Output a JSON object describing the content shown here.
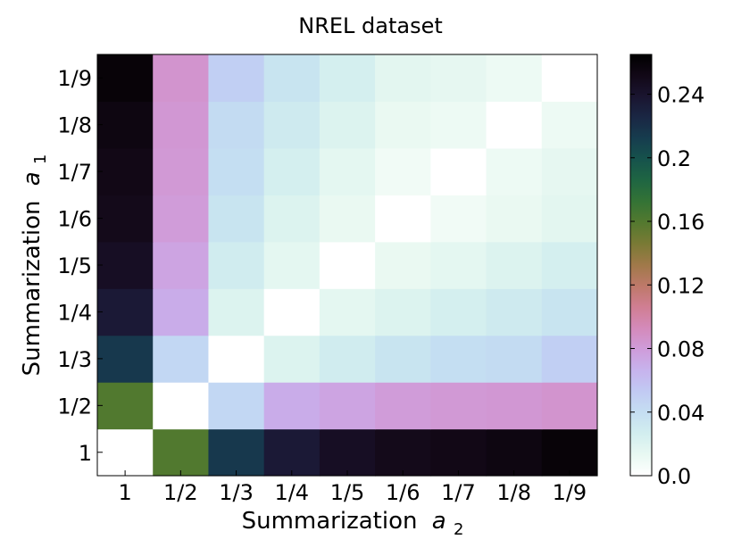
{
  "chart_data": {
    "type": "heatmap",
    "title": "NREL dataset",
    "xlabel": "Summarization",
    "xlabel_var": "a",
    "xlabel_sub": "2",
    "ylabel": "Summarization",
    "ylabel_var": "a",
    "ylabel_sub": "1",
    "x_categories": [
      "1",
      "1/2",
      "1/3",
      "1/4",
      "1/5",
      "1/6",
      "1/7",
      "1/8",
      "1/9"
    ],
    "y_categories": [
      "1",
      "1/2",
      "1/3",
      "1/4",
      "1/5",
      "1/6",
      "1/7",
      "1/8",
      "1/9"
    ],
    "values": [
      [
        0.0,
        0.16,
        0.215,
        0.235,
        0.245,
        0.25,
        0.252,
        0.255,
        0.26
      ],
      [
        0.16,
        0.0,
        0.045,
        0.07,
        0.075,
        0.08,
        0.082,
        0.083,
        0.085
      ],
      [
        0.215,
        0.045,
        0.0,
        0.02,
        0.028,
        0.035,
        0.04,
        0.042,
        0.05
      ],
      [
        0.235,
        0.07,
        0.02,
        0.0,
        0.015,
        0.02,
        0.025,
        0.03,
        0.035
      ],
      [
        0.245,
        0.075,
        0.028,
        0.015,
        0.0,
        0.012,
        0.015,
        0.02,
        0.025
      ],
      [
        0.25,
        0.08,
        0.035,
        0.02,
        0.012,
        0.0,
        0.008,
        0.012,
        0.016
      ],
      [
        0.252,
        0.082,
        0.04,
        0.025,
        0.015,
        0.008,
        0.0,
        0.01,
        0.014
      ],
      [
        0.255,
        0.083,
        0.042,
        0.03,
        0.02,
        0.012,
        0.01,
        0.0,
        0.01
      ],
      [
        0.26,
        0.085,
        0.05,
        0.035,
        0.025,
        0.016,
        0.014,
        0.01,
        0.0
      ]
    ],
    "colorscale": {
      "name": "cubehelix_r",
      "range": [
        0.0,
        0.265
      ],
      "ticks": [
        "0.0",
        "0.04",
        "0.08",
        "0.12",
        "0.16",
        "0.2",
        "0.24"
      ]
    },
    "grid": false
  }
}
